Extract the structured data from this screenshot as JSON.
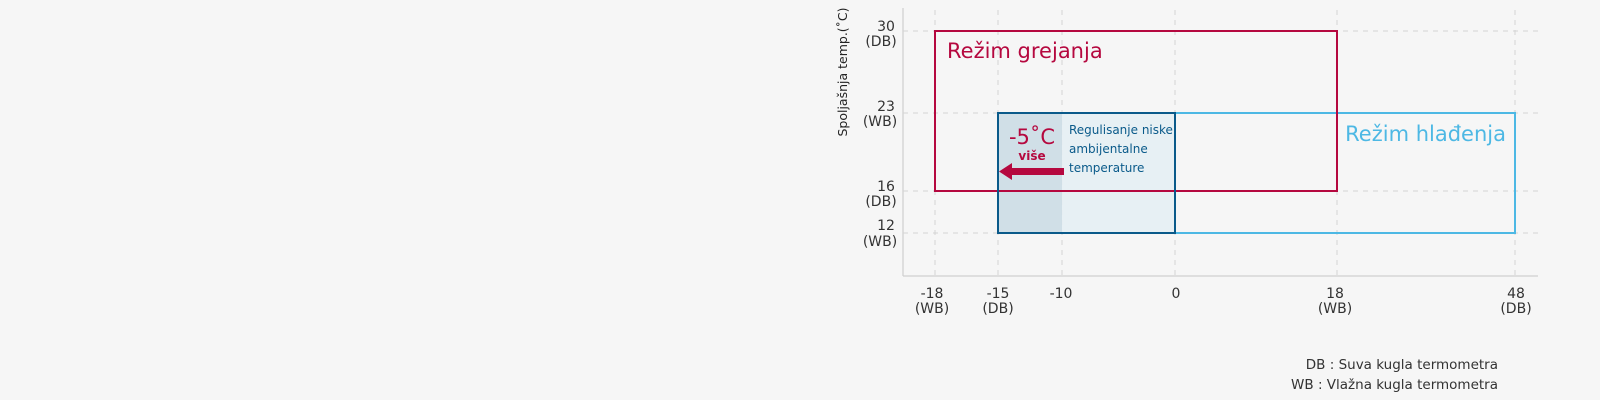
{
  "y_axis_label": "Spoljašnja temp.(˚C)",
  "y_ticks": [
    {
      "value": "30",
      "type": "(DB)"
    },
    {
      "value": "23",
      "type": "(WB)"
    },
    {
      "value": "16",
      "type": "(DB)"
    },
    {
      "value": "12",
      "type": "(WB)"
    }
  ],
  "x_ticks": [
    {
      "value": "-18",
      "type": "(WB)"
    },
    {
      "value": "-15",
      "type": "(DB)"
    },
    {
      "value": "-10",
      "type": ""
    },
    {
      "value": "0",
      "type": ""
    },
    {
      "value": "18",
      "type": "(WB)"
    },
    {
      "value": "48",
      "type": "(DB)"
    }
  ],
  "heating_mode": {
    "label": "Režim grejanja",
    "color": "#b5083f"
  },
  "cooling_mode": {
    "label": "Režim hlađenja",
    "color": "#4db8e4"
  },
  "low_ambient": {
    "temp": "-5˚C",
    "more": "više",
    "label_lines": [
      "Regulisanje niske",
      "ambijentalne",
      "temperature"
    ],
    "color": "#0a5a8a"
  },
  "legend": {
    "db": "DB : Suva kugla termometra",
    "wb": "WB : Vlažna kugla termometra"
  }
}
